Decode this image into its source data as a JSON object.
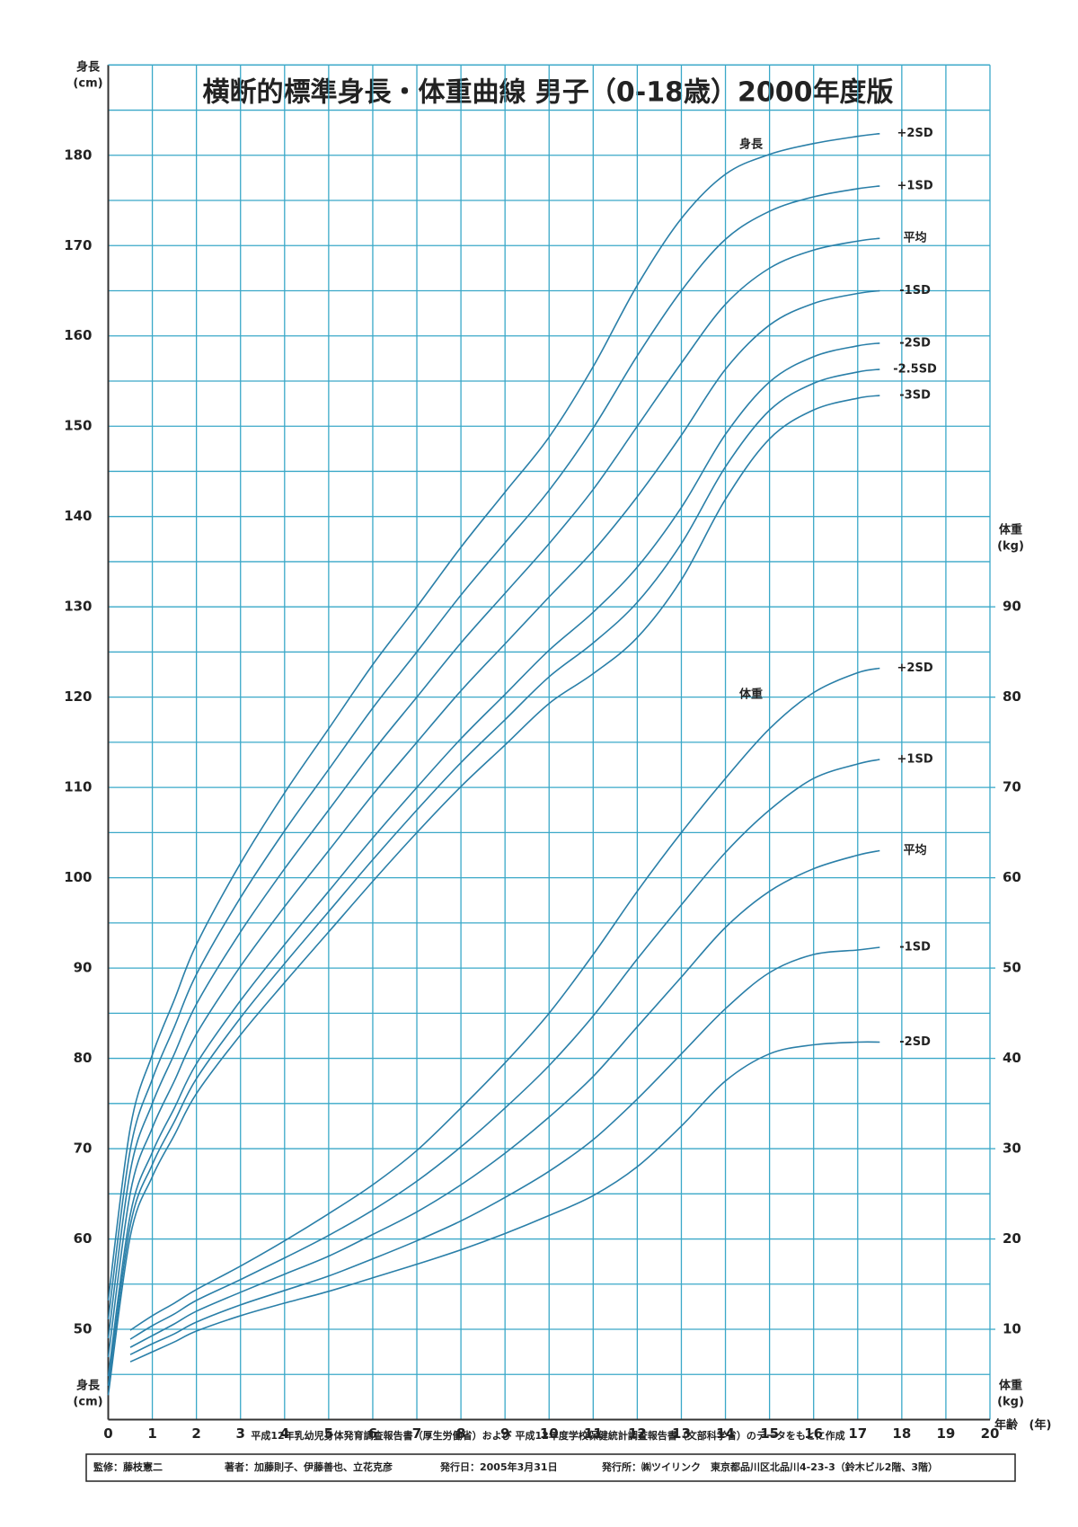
{
  "chart_data": {
    "type": "line",
    "title": "横断的標準身長・体重曲線 男子（0-18歳）2000年度版",
    "x_label": [
      "年齢",
      "(年)"
    ],
    "y_label": [
      "身長",
      "(cm)"
    ],
    "y2_label": [
      "体重",
      "(kg)"
    ],
    "annotations": [
      "身長",
      "体重"
    ],
    "source": "平成12年乳幼児身体発育調査報告書（厚生労働省）および 平成12年度学校保健統計調査報告書（文部科学省）のデータをもとに作成",
    "credits": [
      "監修：藤枝憲二",
      "著者：加藤則子、伊藤善也、立花克彦",
      "発行日：2005年3月31日",
      "発行所：㈱ツイリンク　東京都品川区北品川4-23-3（鈴木ビル2階、3階）"
    ],
    "grid": true,
    "grid_color": "#3aa8c8",
    "xlim": [
      0,
      20
    ],
    "xticks": [
      0,
      1,
      2,
      3,
      4,
      5,
      6,
      7,
      8,
      9,
      10,
      11,
      12,
      13,
      14,
      15,
      16,
      17,
      18,
      19,
      20
    ],
    "ylim": [
      40,
      190
    ],
    "yticks": [
      50,
      60,
      70,
      80,
      90,
      100,
      110,
      120,
      130,
      140,
      150,
      160,
      170,
      180
    ],
    "y2lim": [
      0,
      150
    ],
    "y2ticks": [
      10,
      20,
      30,
      40,
      50,
      60,
      70,
      80,
      90
    ],
    "x": [
      0,
      0.5,
      1,
      1.5,
      2,
      3,
      4,
      5,
      6,
      7,
      8,
      9,
      10,
      11,
      12,
      13,
      14,
      15,
      16,
      17,
      17.5
    ],
    "series": [
      {
        "name": "+2SD",
        "color": "#2a7fa8",
        "values": [
          53.2,
          72.3,
          80.4,
          86.5,
          92.6,
          101.6,
          109.4,
          116.5,
          123.6,
          130.0,
          136.6,
          142.7,
          148.8,
          156.6,
          165.6,
          173.0,
          177.9,
          180.1,
          181.3,
          182.1,
          182.4
        ]
      },
      {
        "name": "+1SD",
        "color": "#2a7fa8",
        "values": [
          51.1,
          69.9,
          77.7,
          83.5,
          89.3,
          97.8,
          105.2,
          112.0,
          118.8,
          125.0,
          131.3,
          137.1,
          142.9,
          149.8,
          157.8,
          165.0,
          170.7,
          173.8,
          175.4,
          176.3,
          176.6
        ]
      },
      {
        "name": "平均",
        "color": "#2a7fa8",
        "values": [
          49.0,
          67.5,
          75.0,
          80.5,
          86.0,
          94.0,
          101.0,
          107.5,
          114.0,
          120.0,
          126.0,
          131.5,
          137.0,
          143.0,
          150.0,
          157.0,
          163.5,
          167.5,
          169.5,
          170.5,
          170.8
        ]
      },
      {
        "name": "-1SD",
        "color": "#2a7fa8",
        "values": [
          46.9,
          65.1,
          72.3,
          77.5,
          82.7,
          90.2,
          96.8,
          103.0,
          109.2,
          115.0,
          120.7,
          125.9,
          131.1,
          136.2,
          142.2,
          149.0,
          156.3,
          161.2,
          163.6,
          164.7,
          165.0
        ]
      },
      {
        "name": "-2SD",
        "color": "#2a7fa8",
        "values": [
          44.8,
          62.7,
          69.6,
          74.5,
          79.4,
          86.4,
          92.6,
          98.5,
          104.4,
          110.0,
          115.4,
          120.3,
          125.2,
          129.4,
          134.4,
          141.0,
          149.1,
          154.9,
          157.7,
          158.9,
          159.2
        ]
      },
      {
        "name": "-2.5SD",
        "color": "#2a7fa8",
        "values": [
          43.75,
          61.5,
          68.25,
          73.0,
          77.75,
          84.5,
          90.5,
          96.25,
          102.0,
          107.5,
          112.75,
          117.5,
          122.25,
          126.0,
          130.5,
          137.0,
          145.5,
          151.75,
          154.75,
          156.0,
          156.3
        ]
      },
      {
        "name": "-3SD",
        "color": "#2a7fa8",
        "values": [
          42.7,
          60.3,
          66.9,
          71.5,
          76.1,
          82.6,
          88.4,
          94.0,
          99.6,
          105.0,
          110.1,
          114.7,
          119.3,
          122.6,
          126.6,
          133.0,
          141.9,
          148.6,
          151.8,
          153.1,
          153.4
        ]
      },
      {
        "name": "+2SD",
        "color": "#2a7fa8",
        "axis": "y2",
        "values": [
          null,
          9.9,
          11.5,
          12.9,
          14.4,
          17.0,
          19.8,
          22.8,
          26.0,
          29.8,
          34.5,
          39.5,
          45.0,
          51.5,
          58.5,
          65.0,
          71.0,
          76.5,
          80.5,
          82.7,
          83.2
        ]
      },
      {
        "name": "+1SD",
        "color": "#2a7fa8",
        "axis": "y2",
        "values": [
          null,
          8.9,
          10.4,
          11.7,
          13.2,
          15.5,
          17.9,
          20.4,
          23.2,
          26.4,
          30.2,
          34.5,
          39.2,
          44.7,
          51.0,
          57.0,
          62.8,
          67.5,
          71.0,
          72.6,
          73.1
        ]
      },
      {
        "name": "平均",
        "color": "#2a7fa8",
        "axis": "y2",
        "values": [
          null,
          8.0,
          9.3,
          10.6,
          12.0,
          14.1,
          16.1,
          18.1,
          20.5,
          23.0,
          26.0,
          29.5,
          33.5,
          38.0,
          43.5,
          49.0,
          54.5,
          58.5,
          61.0,
          62.5,
          63.0
        ]
      },
      {
        "name": "-1SD",
        "color": "#2a7fa8",
        "axis": "y2",
        "values": [
          null,
          7.2,
          8.4,
          9.5,
          10.8,
          12.7,
          14.3,
          15.9,
          17.8,
          19.8,
          22.0,
          24.6,
          27.5,
          31.0,
          35.5,
          40.5,
          45.5,
          49.5,
          51.5,
          52.0,
          52.3
        ]
      },
      {
        "name": "-2SD",
        "color": "#2a7fa8",
        "axis": "y2",
        "values": [
          null,
          6.4,
          7.5,
          8.6,
          9.8,
          11.5,
          12.9,
          14.2,
          15.7,
          17.2,
          18.8,
          20.6,
          22.6,
          24.8,
          28.0,
          32.5,
          37.5,
          40.5,
          41.5,
          41.8,
          41.8
        ]
      }
    ]
  }
}
